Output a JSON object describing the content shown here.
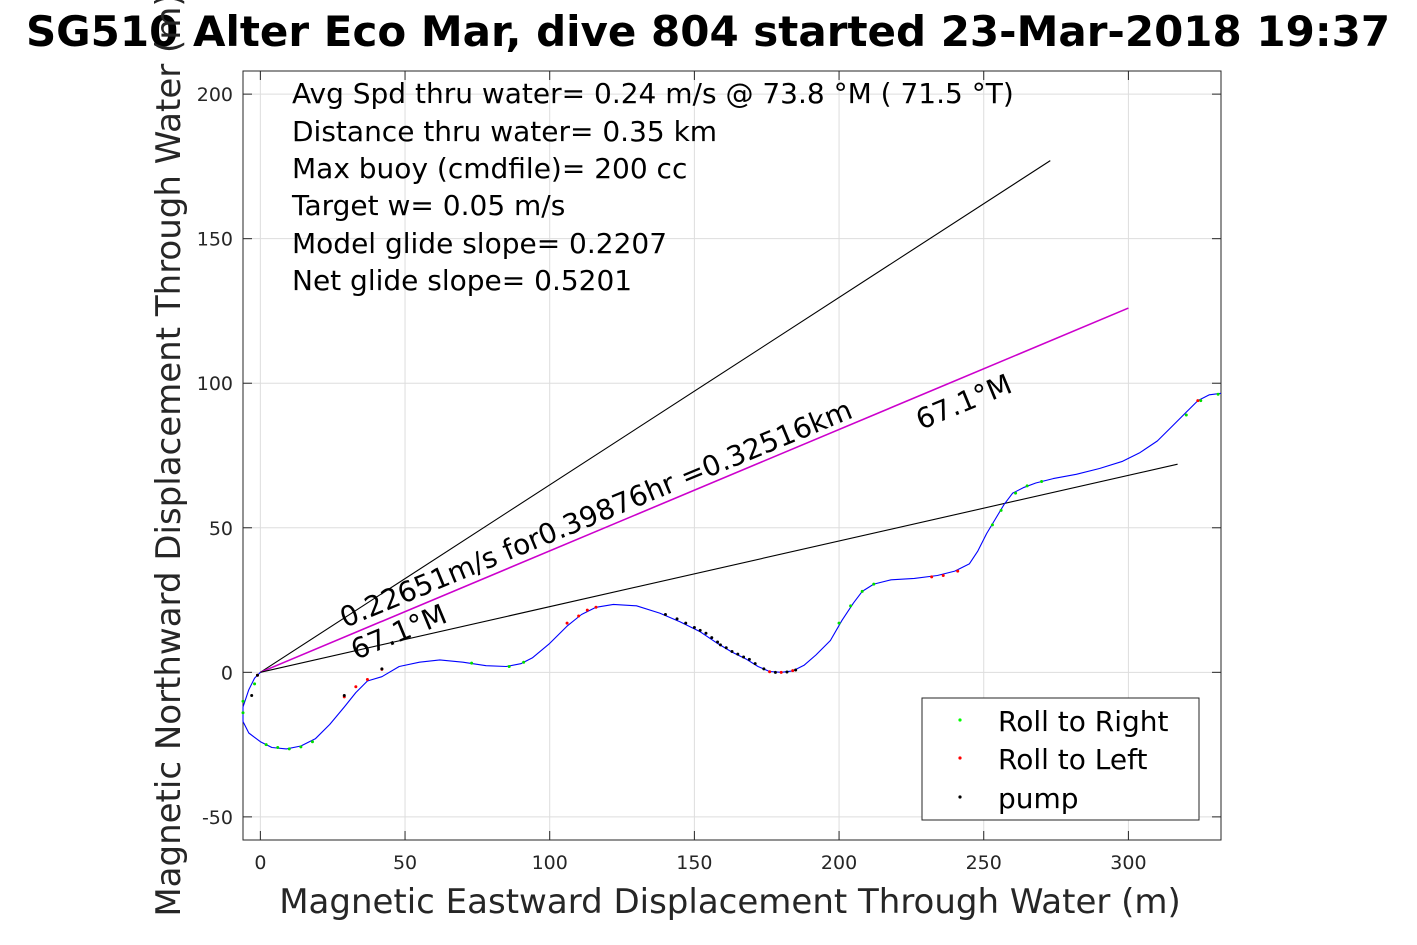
{
  "title": "SG510 Alter Eco Mar, dive 804 started 23-Mar-2018 19:37",
  "info_lines": [
    "Avg Spd thru water=  0.24 m/s @  73.8 °M ( 71.5 °T)",
    "Distance thru water=  0.35 km",
    "Max buoy (cmdfile)= 200 cc",
    "Target w= 0.05 m/s",
    "Model glide slope= 0.2207",
    "Net glide slope= 0.5201"
  ],
  "annotations": {
    "speed_text": "0.22651m/s for0.39876hr =0.32516km",
    "heading_near": "67.1°M",
    "heading_far": "67.1°M"
  },
  "legend": [
    {
      "label": "Roll to Right",
      "color": "#00ff00"
    },
    {
      "label": "Roll to Left",
      "color": "#ff0000"
    },
    {
      "label": "pump",
      "color": "#000000"
    }
  ],
  "colors": {
    "track": "#0000ff",
    "heading_line": "#cc00cc",
    "bound_lines": "#000000",
    "grid": "#dddddd"
  },
  "chart_data": {
    "type": "line",
    "title": "SG510 Alter Eco Mar, dive 804 started 23-Mar-2018 19:37",
    "xlabel": "Magnetic Eastward Displacement Through Water (m)",
    "ylabel": "Magnetic Northward Displacement Through Water (m)",
    "xlim": [
      -6,
      332
    ],
    "ylim": [
      -58,
      208
    ],
    "xticks": [
      0,
      50,
      100,
      150,
      200,
      250,
      300
    ],
    "yticks": [
      -50,
      0,
      50,
      100,
      150,
      200
    ],
    "grid": true,
    "legend_position": "bottom-right",
    "series": [
      {
        "name": "track",
        "points": [
          [
            0,
            0
          ],
          [
            -2,
            -2
          ],
          [
            -4,
            -6
          ],
          [
            -6,
            -12
          ],
          [
            -6,
            -17
          ],
          [
            -4,
            -21
          ],
          [
            0,
            -24
          ],
          [
            4,
            -26
          ],
          [
            9,
            -26.5
          ],
          [
            14,
            -25.5
          ],
          [
            19,
            -23
          ],
          [
            24,
            -18
          ],
          [
            29,
            -12
          ],
          [
            33,
            -7
          ],
          [
            37,
            -3
          ],
          [
            42,
            -1.5
          ],
          [
            48,
            2
          ],
          [
            55,
            3.5
          ],
          [
            62,
            4.3
          ],
          [
            70,
            3.5
          ],
          [
            78,
            2.3
          ],
          [
            85,
            2
          ],
          [
            90,
            3
          ],
          [
            94,
            5
          ],
          [
            100,
            10
          ],
          [
            106,
            16
          ],
          [
            111,
            20
          ],
          [
            116,
            22.5
          ],
          [
            122,
            23.5
          ],
          [
            130,
            23
          ],
          [
            138,
            20.5
          ],
          [
            145,
            17.5
          ],
          [
            152,
            14
          ],
          [
            158,
            10
          ],
          [
            163,
            7
          ],
          [
            168,
            4.5
          ],
          [
            172,
            2
          ],
          [
            176,
            0.3
          ],
          [
            180,
            0
          ],
          [
            184,
            0.5
          ],
          [
            188,
            2.5
          ],
          [
            192,
            6
          ],
          [
            197,
            11
          ],
          [
            201,
            18
          ],
          [
            205,
            24
          ],
          [
            208,
            28
          ],
          [
            212,
            30.5
          ],
          [
            218,
            32
          ],
          [
            226,
            32.5
          ],
          [
            234,
            33.5
          ],
          [
            240,
            35
          ],
          [
            245,
            37.5
          ],
          [
            248,
            42
          ],
          [
            251,
            48
          ],
          [
            254,
            53
          ],
          [
            257,
            58
          ],
          [
            260,
            62
          ],
          [
            264,
            64
          ],
          [
            268,
            65.5
          ],
          [
            274,
            67
          ],
          [
            282,
            68.5
          ],
          [
            290,
            70.5
          ],
          [
            298,
            73
          ],
          [
            304,
            76
          ],
          [
            310,
            80
          ],
          [
            315,
            85
          ],
          [
            320,
            90
          ],
          [
            324,
            94
          ],
          [
            328,
            96
          ],
          [
            332,
            96.5
          ]
        ]
      }
    ],
    "lines": [
      {
        "name": "upper",
        "from": [
          0,
          0
        ],
        "to": [
          273,
          177
        ]
      },
      {
        "name": "heading",
        "from": [
          0,
          0
        ],
        "to": [
          300,
          126
        ]
      },
      {
        "name": "lower",
        "from": [
          0,
          0
        ],
        "to": [
          317,
          72
        ]
      }
    ],
    "markers": {
      "roll_right": [
        [
          -6,
          -10
        ],
        [
          -6,
          -14
        ],
        [
          -2,
          -4
        ],
        [
          2,
          -25
        ],
        [
          6,
          -26
        ],
        [
          10,
          -26.5
        ],
        [
          14,
          -25.8
        ],
        [
          18,
          -24
        ],
        [
          73,
          3.2
        ],
        [
          86,
          2
        ],
        [
          91,
          3.5
        ],
        [
          200,
          17
        ],
        [
          204,
          23
        ],
        [
          208,
          28
        ],
        [
          212,
          30.5
        ],
        [
          253,
          51
        ],
        [
          256,
          56
        ],
        [
          261,
          62
        ],
        [
          265,
          64.5
        ],
        [
          270,
          66
        ],
        [
          320,
          89
        ],
        [
          325,
          94
        ],
        [
          331,
          96.2
        ]
      ],
      "roll_left": [
        [
          -1,
          -1
        ],
        [
          29,
          -8.5
        ],
        [
          33,
          -5
        ],
        [
          37,
          -2.5
        ],
        [
          42,
          1
        ],
        [
          106,
          17
        ],
        [
          110,
          19.5
        ],
        [
          113,
          21.5
        ],
        [
          116,
          22.5
        ],
        [
          176,
          0.2
        ],
        [
          180,
          0
        ],
        [
          184,
          0.6
        ],
        [
          232,
          33
        ],
        [
          236,
          33.5
        ],
        [
          241,
          35
        ],
        [
          324,
          94
        ]
      ],
      "pump": [
        [
          -3,
          -8
        ],
        [
          -1,
          -1
        ],
        [
          29,
          -8
        ],
        [
          42,
          1.2
        ],
        [
          140,
          20
        ],
        [
          144,
          18.5
        ],
        [
          147,
          17
        ],
        [
          150,
          15.5
        ],
        [
          152,
          14.5
        ],
        [
          154,
          13.5
        ],
        [
          156,
          12
        ],
        [
          158,
          10.5
        ],
        [
          159,
          9.5
        ],
        [
          161,
          8.5
        ],
        [
          163,
          7.2
        ],
        [
          165,
          6.3
        ],
        [
          167,
          5.3
        ],
        [
          169,
          4.5
        ],
        [
          171,
          3
        ],
        [
          174,
          1.2
        ],
        [
          178,
          0
        ],
        [
          182,
          0.1
        ],
        [
          185,
          0.8
        ]
      ]
    }
  }
}
